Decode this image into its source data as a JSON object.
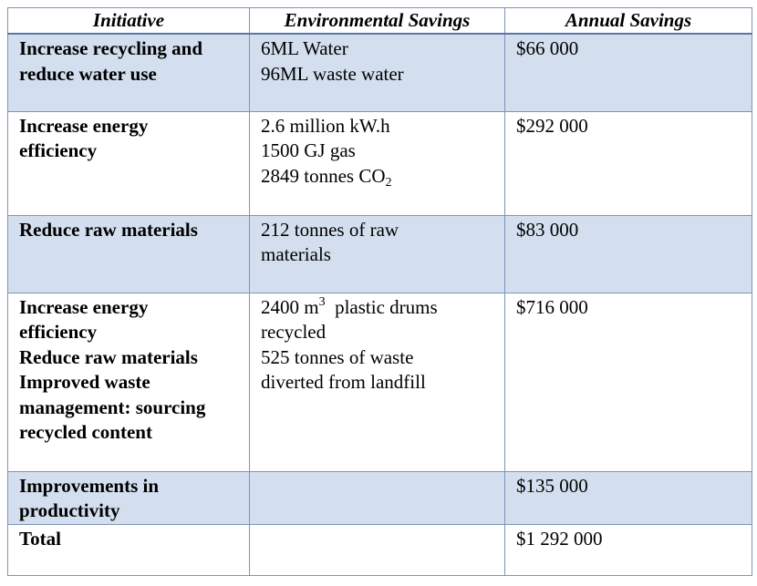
{
  "headers": {
    "initiative": "Initiative",
    "environmental": "Environmental Savings",
    "annual": "Annual Savings"
  },
  "rows": [
    {
      "initiative": [
        "Increase recycling and",
        "reduce water use"
      ],
      "environmental": [
        "6ML Water",
        "96ML waste water"
      ],
      "annual": "$66 000"
    },
    {
      "initiative": [
        "Increase energy",
        "efficiency"
      ],
      "environmental": [
        "2.6 million kW.h",
        "1500 GJ gas"
      ],
      "environmental_co2": {
        "prefix": "2849 tonnes CO",
        "sub": "2"
      },
      "annual": "$292 000"
    },
    {
      "initiative": [
        "Reduce raw materials"
      ],
      "environmental": [
        "212 tonnes of raw",
        "materials"
      ],
      "annual": "$83 000"
    },
    {
      "initiative": [
        "Increase energy",
        "efficiency",
        "Reduce raw materials",
        "Improved waste",
        "management: sourcing",
        "recycled content"
      ],
      "environmental_m3": {
        "prefix": "2400 m",
        "sup": "3",
        "suffix": "  plastic drums"
      },
      "environmental": [
        "recycled",
        "525 tonnes of waste",
        "diverted from landfill"
      ],
      "annual": "$716 000"
    },
    {
      "initiative": [
        "Improvements in",
        "productivity"
      ],
      "environmental": [],
      "annual": "$135 000"
    },
    {
      "initiative": [
        "Total"
      ],
      "environmental": [],
      "annual": "$1 292 000"
    }
  ]
}
